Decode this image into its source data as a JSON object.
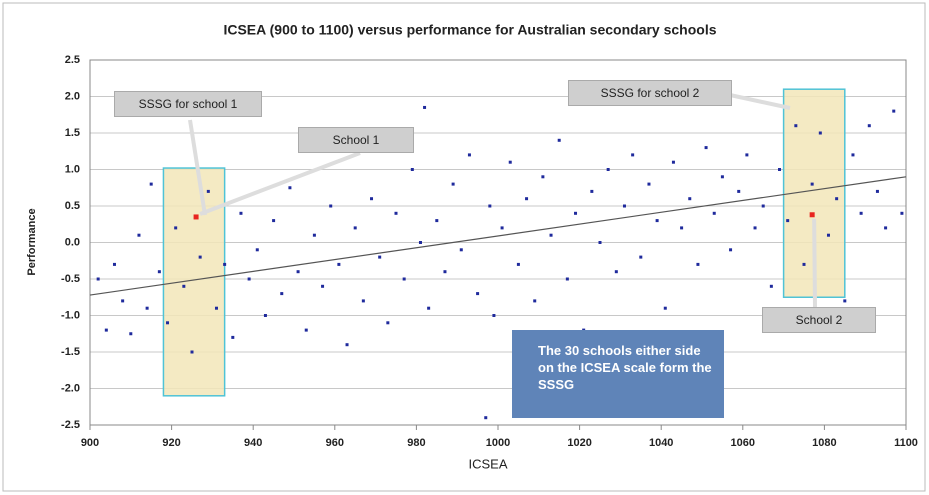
{
  "chart_data": {
    "type": "scatter",
    "title": "ICSEA (900 to 1100) versus performance for Australian secondary schools",
    "x_label": "ICSEA",
    "y_label": "Performance",
    "xlim": [
      900,
      1100
    ],
    "xticks": [
      900,
      920,
      940,
      960,
      980,
      1000,
      1020,
      1040,
      1060,
      1080,
      1100
    ],
    "ylim": [
      -2.5,
      2.5
    ],
    "yticks": [
      {
        "value": -2.5,
        "label": "-2.5"
      },
      {
        "value": -2,
        "label": "-2.0"
      },
      {
        "value": -1.5,
        "label": "-1.5"
      },
      {
        "value": -1,
        "label": "-1.0"
      },
      {
        "value": -0.5,
        "label": "-0.5"
      },
      {
        "value": 0,
        "label": "0.0"
      },
      {
        "value": 0.5,
        "label": "0.5"
      },
      {
        "value": 1,
        "label": "1.0"
      },
      {
        "value": 1.5,
        "label": "1.5"
      },
      {
        "value": 2,
        "label": "2.0"
      },
      2.5
    ],
    "grid": true,
    "series": [
      {
        "color": "#1f2a9c",
        "x": [
          902,
          904,
          906,
          908,
          910,
          912,
          914,
          915,
          917,
          919,
          921,
          923,
          925,
          927,
          929,
          931,
          933,
          935,
          937,
          939,
          941,
          943,
          945,
          947,
          949,
          951,
          953,
          955,
          957,
          959,
          961,
          963,
          965,
          967,
          969,
          971,
          973,
          975,
          977,
          979,
          981,
          982,
          983,
          985,
          987,
          989,
          991,
          993,
          995,
          997,
          998,
          999,
          1001,
          1003,
          1005,
          1007,
          1009,
          1011,
          1013,
          1015,
          1017,
          1019,
          1021,
          1023,
          1025,
          1027,
          1029,
          1031,
          1033,
          1035,
          1037,
          1039,
          1041,
          1043,
          1045,
          1047,
          1049,
          1051,
          1053,
          1055,
          1057,
          1059,
          1061,
          1063,
          1065,
          1067,
          1069,
          1071,
          1073,
          1075,
          1077,
          1079,
          1081,
          1083,
          1085,
          1087,
          1089,
          1091,
          1093,
          1095,
          1097,
          1099
        ],
        "values": [
          -0.5,
          -1.2,
          -0.3,
          -0.8,
          -1.25,
          0.1,
          -0.9,
          0.8,
          -0.4,
          -1.1,
          0.2,
          -0.6,
          -1.5,
          -0.2,
          0.7,
          -0.9,
          -0.3,
          -1.3,
          0.4,
          -0.5,
          -0.1,
          -1.0,
          0.3,
          -0.7,
          0.75,
          -0.4,
          -1.2,
          0.1,
          -0.6,
          0.5,
          -0.3,
          -1.4,
          0.2,
          -0.8,
          0.6,
          -0.2,
          -1.1,
          0.4,
          -0.5,
          1.0,
          0.0,
          1.85,
          -0.9,
          0.3,
          -0.4,
          0.8,
          -0.1,
          1.2,
          -0.7,
          -2.4,
          0.5,
          -1.0,
          0.2,
          1.1,
          -0.3,
          0.6,
          -0.8,
          0.9,
          0.1,
          1.4,
          -0.5,
          0.4,
          -1.2,
          0.7,
          0.0,
          1.0,
          -0.4,
          0.5,
          1.2,
          -0.2,
          0.8,
          0.3,
          -0.9,
          1.1,
          0.2,
          0.6,
          -0.3,
          1.3,
          0.4,
          0.9,
          -0.1,
          0.7,
          1.2,
          0.2,
          0.5,
          -0.6,
          1.0,
          0.3,
          1.6,
          -0.3,
          0.8,
          1.5,
          0.1,
          0.6,
          -0.8,
          1.2,
          0.4,
          1.6,
          0.7,
          0.2,
          1.8,
          0.4
        ]
      },
      {
        "color": "#e8251f",
        "x": [
          926,
          1077
        ],
        "values": [
          0.35,
          0.38
        ]
      }
    ],
    "trendline": {
      "color": "#555555",
      "x": [
        900,
        1100
      ],
      "values": [
        -0.72,
        0.9
      ]
    },
    "regions": [
      {
        "x": [
          918,
          933
        ],
        "values": [
          -2.1,
          1.02
        ]
      },
      {
        "x": [
          1070,
          1085
        ],
        "values": [
          -0.75,
          2.1
        ]
      }
    ],
    "annotations": [
      "SSSG for school 1",
      "School 1",
      "SSSG for school 2",
      "School 2",
      "The 30 schools either side on the ICSEA scale form the SSSG"
    ]
  }
}
